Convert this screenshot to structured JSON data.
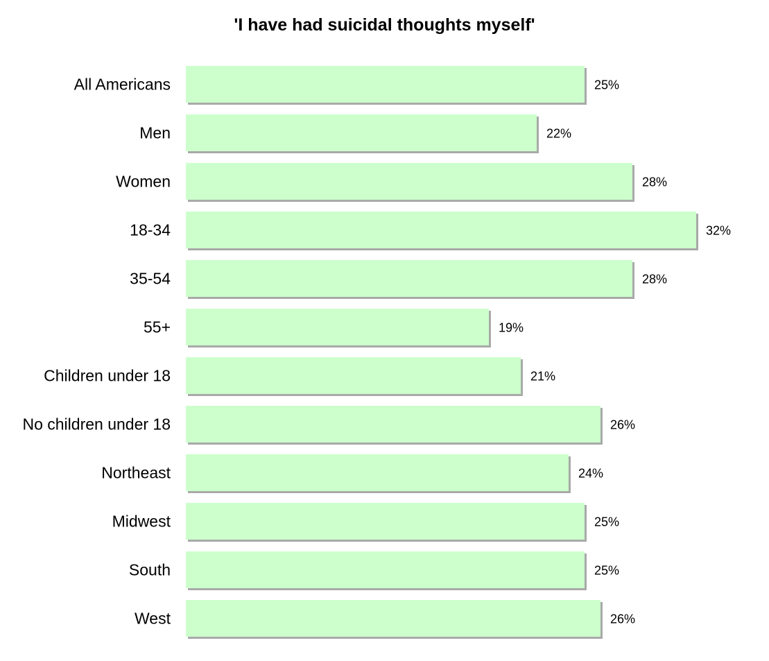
{
  "chart_data": {
    "type": "bar",
    "orientation": "horizontal",
    "title": "'I have had suicidal thoughts myself'",
    "categories": [
      "All Americans",
      "Men",
      "Women",
      "18-34",
      "35-54",
      "55+",
      "Children under 18",
      "No children under 18",
      "Northeast",
      "Midwest",
      "South",
      "West"
    ],
    "values": [
      25,
      22,
      28,
      32,
      28,
      19,
      21,
      26,
      24,
      25,
      25,
      26
    ],
    "value_labels": [
      "25%",
      "22%",
      "28%",
      "32%",
      "28%",
      "19%",
      "21%",
      "26%",
      "24%",
      "25%",
      "25%",
      "26%"
    ],
    "unit": "%",
    "bar_color": "#ccffcc",
    "bar_shadow_color": "#a9a9a9",
    "grid": false,
    "legend": "none"
  }
}
